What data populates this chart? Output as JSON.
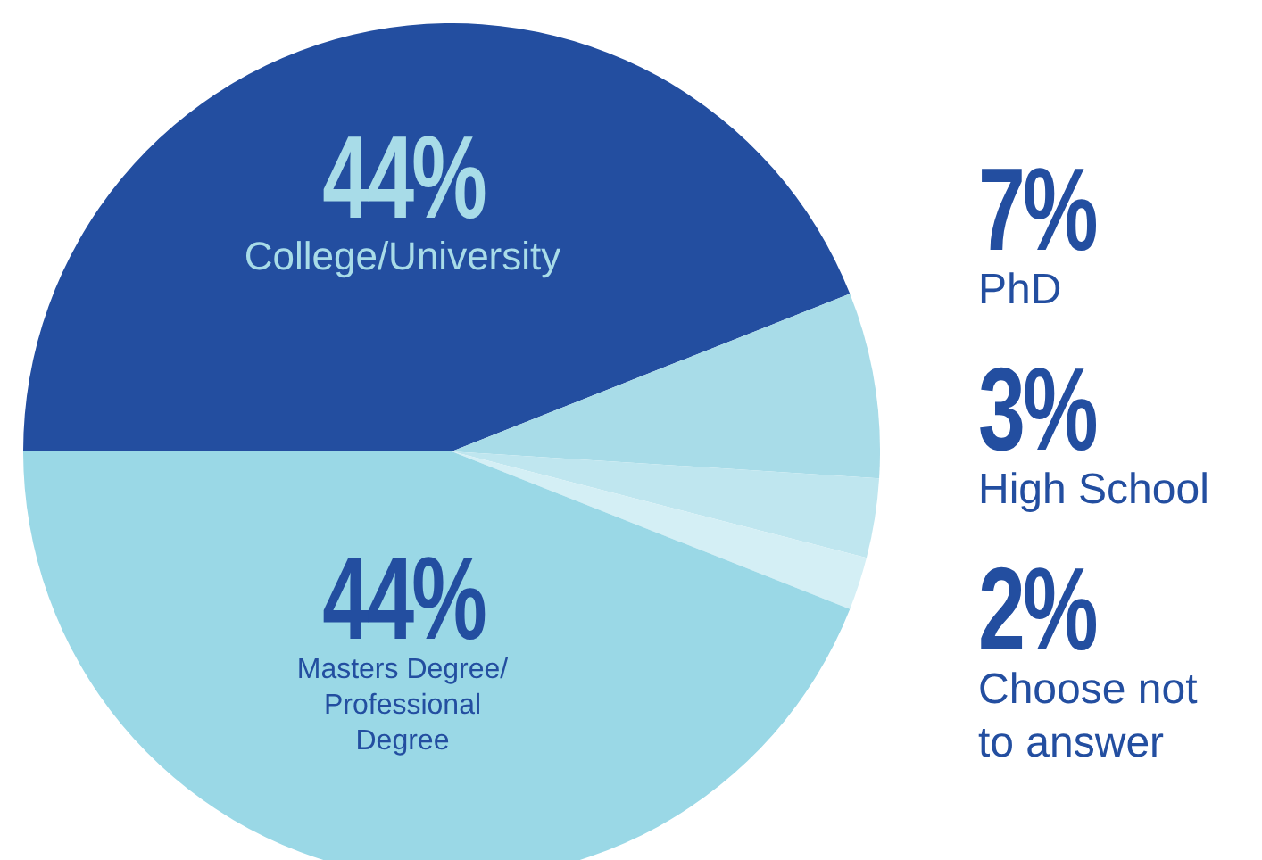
{
  "chart_data": {
    "type": "pie",
    "categories": [
      "College/University",
      "PhD",
      "High School",
      "Choose not to answer",
      "Masters Degree/ Professional Degree"
    ],
    "values": [
      44,
      7,
      3,
      2,
      44
    ],
    "value_labels": [
      "44%",
      "7%",
      "3%",
      "2%",
      "44%"
    ],
    "colors": [
      "#234ea0",
      "#a8dce8",
      "#bfe6ef",
      "#d4eff5",
      "#9ad8e6"
    ]
  }
}
